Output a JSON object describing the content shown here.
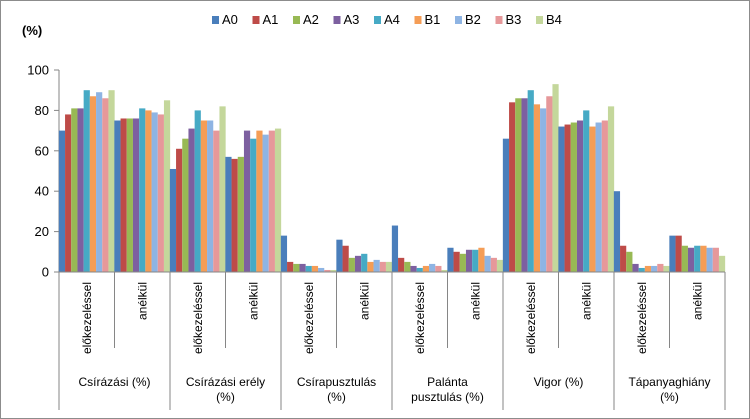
{
  "chart_data": {
    "type": "bar",
    "ylabel": "(%)",
    "ylim": [
      0,
      100
    ],
    "yticks": [
      0,
      20,
      40,
      60,
      80,
      100
    ],
    "legend_position": "top-right",
    "groups": [
      {
        "label": "Csírázási (%)",
        "subcategories": [
          "előkezeléssel",
          "anélkül"
        ]
      },
      {
        "label": "Csírázási erély (%)",
        "subcategories": [
          "előkezeléssel",
          "anélkül"
        ]
      },
      {
        "label": "Csírapusztulás (%)",
        "subcategories": [
          "előkezeléssel",
          "anélkül"
        ]
      },
      {
        "label": "Palánta pusztulás (%)",
        "subcategories": [
          "előkezeléssel",
          "anélkül"
        ]
      },
      {
        "label": "Vigor (%)",
        "subcategories": [
          "előkezeléssel",
          "anélkül"
        ]
      },
      {
        "label": "Tápanyaghiány (%)",
        "subcategories": [
          "előkezeléssel",
          "anélkül"
        ]
      }
    ],
    "series": [
      {
        "name": "A0",
        "color": "#4a7ebb",
        "values": [
          70,
          75,
          51,
          57,
          18,
          16,
          23,
          12,
          66,
          72,
          40,
          18
        ]
      },
      {
        "name": "A1",
        "color": "#be4b48",
        "values": [
          78,
          76,
          61,
          56,
          5,
          13,
          7,
          10,
          84,
          73,
          13,
          18
        ]
      },
      {
        "name": "A2",
        "color": "#98b954",
        "values": [
          81,
          76,
          66,
          57,
          4,
          7,
          5,
          9,
          86,
          74,
          10,
          13
        ]
      },
      {
        "name": "A3",
        "color": "#7d60a0",
        "values": [
          81,
          76,
          71,
          70,
          4,
          8,
          3,
          11,
          86,
          75,
          4,
          12
        ]
      },
      {
        "name": "A4",
        "color": "#46aac5",
        "values": [
          90,
          81,
          80,
          66,
          3,
          9,
          2,
          11,
          90,
          80,
          2,
          13
        ]
      },
      {
        "name": "B1",
        "color": "#f59d56",
        "values": [
          87,
          80,
          75,
          70,
          3,
          5,
          3,
          12,
          83,
          72,
          3,
          13
        ]
      },
      {
        "name": "B2",
        "color": "#8eb4e3",
        "values": [
          89,
          79,
          75,
          68,
          2,
          6,
          4,
          8,
          81,
          74,
          3,
          12
        ]
      },
      {
        "name": "B3",
        "color": "#e6989a",
        "values": [
          86,
          78,
          70,
          70,
          1,
          5,
          3,
          7,
          87,
          75,
          4,
          12
        ]
      },
      {
        "name": "B4",
        "color": "#c4d79b",
        "values": [
          90,
          85,
          82,
          71,
          1,
          5,
          1,
          6,
          93,
          82,
          3,
          8
        ]
      }
    ]
  }
}
